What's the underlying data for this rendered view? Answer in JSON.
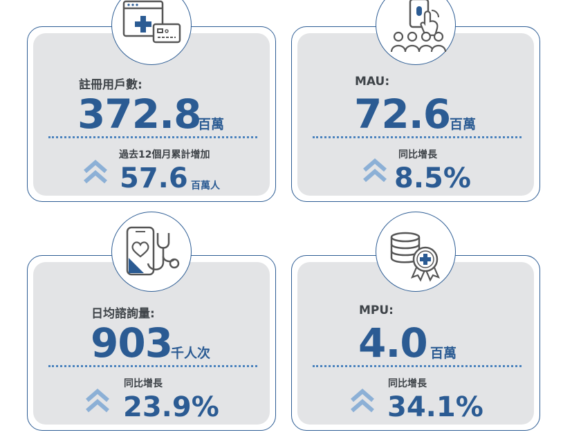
{
  "cards": [
    {
      "icon": "browser-medical-card-icon",
      "label": "註冊用戶數:",
      "value": "372.8",
      "unit": "百萬",
      "sub_label": "過去12個月累計增加",
      "sub_value": "57.6",
      "sub_unit": "百萬人"
    },
    {
      "icon": "touch-users-icon",
      "label": "MAU:",
      "value": "72.6",
      "unit": "百萬",
      "sub_label": "同比增長",
      "sub_value": "8.5%",
      "sub_unit": ""
    },
    {
      "icon": "phone-stethoscope-icon",
      "label": "日均諮詢量:",
      "value": "903",
      "unit": "千人次",
      "sub_label": "同比增長",
      "sub_value": "23.9%",
      "sub_unit": ""
    },
    {
      "icon": "coins-medical-badge-icon",
      "label": "MPU:",
      "value": "4.0",
      "unit": "百萬",
      "sub_label": "同比增長",
      "sub_value": "34.1%",
      "sub_unit": ""
    }
  ],
  "colors": {
    "accent": "#2b5b93",
    "dotted_line": "#4a82bd",
    "chevron": "#8cb0d6",
    "panel": "#e3e4e6",
    "text": "#3e4348"
  }
}
